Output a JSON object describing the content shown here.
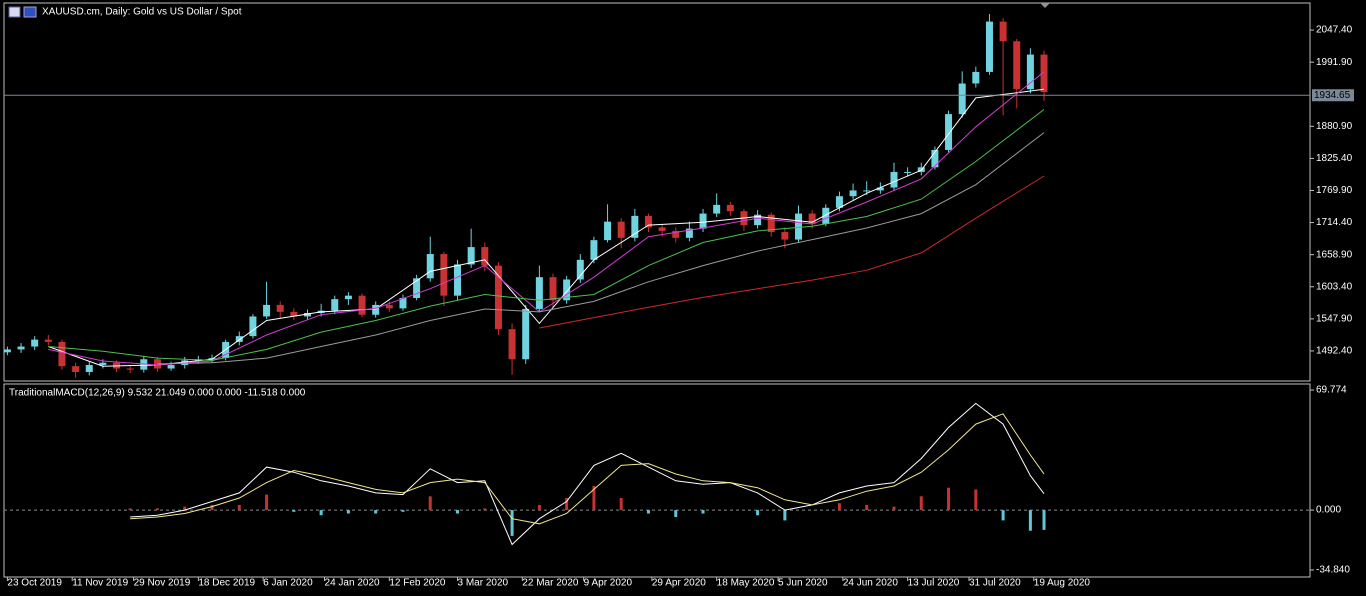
{
  "chart_data": [
    {
      "type": "candlestick",
      "title": "XAUUSD.cm, Daily:  Gold vs US Dollar / Spot",
      "x": [
        "2019-10-23",
        "2019-10-27",
        "2019-10-31",
        "2019-11-04",
        "2019-11-08",
        "2019-11-12",
        "2019-11-16",
        "2019-11-20",
        "2019-11-24",
        "2019-11-28",
        "2019-12-02",
        "2019-12-06",
        "2019-12-10",
        "2019-12-14",
        "2019-12-18",
        "2019-12-22",
        "2019-12-26",
        "2019-12-30",
        "2020-01-03",
        "2020-01-07",
        "2020-01-11",
        "2020-01-15",
        "2020-01-19",
        "2020-01-23",
        "2020-01-27",
        "2020-01-31",
        "2020-02-04",
        "2020-02-08",
        "2020-02-12",
        "2020-02-16",
        "2020-02-20",
        "2020-02-24",
        "2020-02-28",
        "2020-03-03",
        "2020-03-07",
        "2020-03-11",
        "2020-03-15",
        "2020-03-19",
        "2020-03-23",
        "2020-03-27",
        "2020-03-31",
        "2020-04-04",
        "2020-04-08",
        "2020-04-12",
        "2020-04-16",
        "2020-04-20",
        "2020-04-24",
        "2020-04-28",
        "2020-05-02",
        "2020-05-06",
        "2020-05-10",
        "2020-05-14",
        "2020-05-18",
        "2020-05-22",
        "2020-05-26",
        "2020-05-30",
        "2020-06-03",
        "2020-06-07",
        "2020-06-11",
        "2020-06-15",
        "2020-06-19",
        "2020-06-23",
        "2020-06-27",
        "2020-07-01",
        "2020-07-05",
        "2020-07-09",
        "2020-07-13",
        "2020-07-17",
        "2020-07-21",
        "2020-07-25",
        "2020-07-29",
        "2020-08-02",
        "2020-08-06",
        "2020-08-10",
        "2020-08-14",
        "2020-08-18",
        "2020-08-22"
      ],
      "open": [
        1490,
        1495,
        1500,
        1512,
        1508,
        1466,
        1456,
        1468,
        1472,
        1462,
        1460,
        1478,
        1462,
        1468,
        1476,
        1478,
        1480,
        1508,
        1518,
        1552,
        1572,
        1560,
        1552,
        1558,
        1562,
        1582,
        1588,
        1555,
        1572,
        1566,
        1584,
        1618,
        1660,
        1588,
        1642,
        1672,
        1640,
        1530,
        1478,
        1565,
        1620,
        1580,
        1616,
        1650,
        1684,
        1716,
        1688,
        1726,
        1706,
        1700,
        1688,
        1704,
        1730,
        1745,
        1734,
        1710,
        1728,
        1698,
        1685,
        1730,
        1712,
        1740,
        1760,
        1770,
        1770,
        1775,
        1802,
        1802,
        1810,
        1840,
        1902,
        1955,
        1975,
        2062,
        2028,
        1945,
        2005
      ],
      "high": [
        1500,
        1506,
        1518,
        1520,
        1512,
        1472,
        1474,
        1478,
        1476,
        1468,
        1484,
        1482,
        1474,
        1482,
        1484,
        1486,
        1512,
        1526,
        1556,
        1612,
        1578,
        1566,
        1564,
        1574,
        1588,
        1594,
        1592,
        1578,
        1578,
        1590,
        1624,
        1690,
        1664,
        1650,
        1704,
        1680,
        1646,
        1540,
        1572,
        1640,
        1626,
        1622,
        1660,
        1690,
        1746,
        1722,
        1738,
        1730,
        1712,
        1706,
        1716,
        1738,
        1765,
        1750,
        1738,
        1736,
        1732,
        1706,
        1744,
        1736,
        1746,
        1768,
        1782,
        1786,
        1784,
        1818,
        1810,
        1818,
        1846,
        1908,
        1976,
        1984,
        2075,
        2068,
        2032,
        2016,
        2012
      ],
      "low": [
        1485,
        1489,
        1494,
        1502,
        1460,
        1446,
        1450,
        1462,
        1456,
        1454,
        1455,
        1456,
        1458,
        1462,
        1470,
        1472,
        1476,
        1502,
        1514,
        1548,
        1548,
        1546,
        1546,
        1552,
        1556,
        1572,
        1550,
        1550,
        1560,
        1562,
        1580,
        1612,
        1570,
        1580,
        1636,
        1630,
        1520,
        1451,
        1470,
        1560,
        1568,
        1574,
        1610,
        1644,
        1680,
        1670,
        1682,
        1698,
        1690,
        1680,
        1682,
        1698,
        1724,
        1726,
        1700,
        1704,
        1690,
        1670,
        1680,
        1704,
        1708,
        1734,
        1754,
        1762,
        1764,
        1770,
        1794,
        1796,
        1806,
        1836,
        1896,
        1948,
        1970,
        1900,
        1912,
        1938,
        1925
      ],
      "close": [
        1495,
        1500,
        1512,
        1508,
        1466,
        1456,
        1468,
        1472,
        1462,
        1460,
        1478,
        1462,
        1468,
        1476,
        1478,
        1480,
        1508,
        1518,
        1552,
        1572,
        1560,
        1552,
        1558,
        1562,
        1582,
        1588,
        1555,
        1572,
        1566,
        1584,
        1618,
        1660,
        1588,
        1642,
        1672,
        1640,
        1530,
        1478,
        1565,
        1620,
        1580,
        1616,
        1650,
        1684,
        1716,
        1688,
        1726,
        1706,
        1700,
        1688,
        1704,
        1730,
        1745,
        1734,
        1710,
        1728,
        1698,
        1685,
        1730,
        1712,
        1740,
        1760,
        1770,
        1770,
        1775,
        1802,
        1802,
        1810,
        1840,
        1902,
        1955,
        1975,
        2062,
        2028,
        1945,
        2005,
        1940
      ],
      "up_color": "#6fd3e0",
      "down_color": "#c83232",
      "overlays": {
        "x": [
          "2019-11-04",
          "2019-11-20",
          "2019-12-06",
          "2019-12-22",
          "2020-01-07",
          "2020-01-23",
          "2020-02-08",
          "2020-02-24",
          "2020-03-11",
          "2020-03-27",
          "2020-04-12",
          "2020-04-28",
          "2020-05-14",
          "2020-05-30",
          "2020-06-15",
          "2020-07-01",
          "2020-07-17",
          "2020-08-02",
          "2020-08-22"
        ],
        "series": [
          {
            "color": "#ffffff",
            "values": [
              1500,
              1466,
              1468,
              1478,
              1545,
              1560,
              1565,
              1630,
              1650,
              1540,
              1650,
              1710,
              1715,
              1725,
              1715,
              1765,
              1805,
              1930,
              1945
            ]
          },
          {
            "color": "#d23cd2",
            "values": [
              1495,
              1475,
              1468,
              1475,
              1520,
              1555,
              1566,
              1600,
              1640,
              1560,
              1620,
              1690,
              1705,
              1722,
              1712,
              1750,
              1790,
              1880,
              1975
            ]
          },
          {
            "color": "#4cc04c",
            "values": [
              1500,
              1492,
              1480,
              1476,
              1495,
              1525,
              1545,
              1570,
              1590,
              1580,
              1590,
              1640,
              1680,
              1700,
              1708,
              1725,
              1755,
              1820,
              1910
            ]
          },
          {
            "color": "#9a9a9a",
            "values": [
              null,
              null,
              1470,
              1472,
              1480,
              1500,
              1520,
              1545,
              1565,
              1560,
              1578,
              1612,
              1640,
              1665,
              1685,
              1705,
              1730,
              1780,
              1870
            ]
          },
          {
            "color": "#d02828",
            "values": [
              null,
              null,
              null,
              null,
              null,
              null,
              null,
              null,
              null,
              1532,
              1550,
              1568,
              1585,
              1600,
              1615,
              1632,
              1662,
              1722,
              1795
            ]
          }
        ]
      },
      "current_price": 1934.65,
      "current_price_color": "#7a8898",
      "xlim": [
        "2019-10-22",
        "2020-11-08"
      ],
      "ylim": [
        1440.4,
        2094.2
      ],
      "yticks": [
        {
          "value": 2047.4,
          "label": "2047.40"
        },
        {
          "value": 1991.9,
          "label": "1991.90"
        },
        {
          "value": 1880.9,
          "label": "1880.90"
        },
        {
          "value": 1825.4,
          "label": "1825.40"
        },
        {
          "value": 1769.9,
          "label": "1769.90"
        },
        {
          "value": 1714.4,
          "label": "1714.40"
        },
        {
          "value": 1658.9,
          "label": "1658.90"
        },
        {
          "value": 1603.4,
          "label": "1603.40"
        },
        {
          "value": 1547.9,
          "label": "1547.90"
        },
        {
          "value": 1492.4,
          "label": "1492.40"
        }
      ],
      "grid": false
    },
    {
      "type": "macd",
      "title": "TraditionalMACD(12,26,9) 9.532 21.049 0.000 0.000 -11.518 0.000",
      "x": [
        "2019-11-28",
        "2019-12-06",
        "2019-12-14",
        "2019-12-22",
        "2019-12-30",
        "2020-01-07",
        "2020-01-15",
        "2020-01-23",
        "2020-01-31",
        "2020-02-08",
        "2020-02-16",
        "2020-02-24",
        "2020-03-03",
        "2020-03-11",
        "2020-03-19",
        "2020-03-27",
        "2020-04-04",
        "2020-04-12",
        "2020-04-20",
        "2020-04-28",
        "2020-05-06",
        "2020-05-14",
        "2020-05-22",
        "2020-05-30",
        "2020-06-07",
        "2020-06-15",
        "2020-06-23",
        "2020-07-01",
        "2020-07-09",
        "2020-07-17",
        "2020-07-25",
        "2020-08-02",
        "2020-08-10",
        "2020-08-18",
        "2020-08-22"
      ],
      "series": [
        {
          "color": "#ffffff",
          "values": [
            -4,
            -3,
            0,
            5,
            10,
            25,
            22,
            17,
            14,
            10,
            9,
            24,
            16,
            17,
            -20,
            -5,
            5,
            26,
            33,
            25,
            17,
            15,
            16,
            10,
            0,
            3,
            10,
            14,
            16,
            30,
            48,
            62,
            50,
            20,
            9.532
          ]
        },
        {
          "color": "#f0e68c",
          "values": [
            -5,
            -4,
            -2,
            2,
            7,
            16,
            23,
            20,
            16,
            12,
            10,
            16,
            18,
            16,
            -5,
            -8,
            -2,
            12,
            26,
            27,
            21,
            17,
            16,
            13,
            6,
            3,
            6,
            11,
            14,
            22,
            35,
            50,
            56,
            32,
            21.049
          ]
        }
      ],
      "histogram": {
        "up_color": "#c83232",
        "down_color": "#5fc8d8",
        "values": [
          1,
          1,
          2,
          3,
          3,
          9,
          -1,
          -3,
          -2,
          -2,
          -1,
          8,
          -2,
          1,
          -15,
          3,
          7,
          14,
          7,
          -2,
          -4,
          -2,
          0,
          -3,
          -6,
          0,
          4,
          3,
          2,
          8,
          13,
          12,
          -6,
          -12,
          -11.518
        ]
      },
      "xlim": [
        "2019-10-22",
        "2020-11-08"
      ],
      "ylim": [
        -38.9,
        73.3
      ],
      "yticks": [
        {
          "value": 69.774,
          "label": "69.774"
        },
        {
          "value": 0,
          "label": "0.000"
        },
        {
          "value": -34.84,
          "label": "-34.840"
        }
      ],
      "xticks": [
        {
          "value": "2019-10-23",
          "label": "23 Oct 2019"
        },
        {
          "value": "2019-11-11",
          "label": "11 Nov 2019"
        },
        {
          "value": "2019-11-29",
          "label": "29 Nov 2019"
        },
        {
          "value": "2019-12-18",
          "label": "18 Dec 2019"
        },
        {
          "value": "2020-01-06",
          "label": "6 Jan 2020"
        },
        {
          "value": "2020-01-24",
          "label": "24 Jan 2020"
        },
        {
          "value": "2020-02-12",
          "label": "12 Feb 2020"
        },
        {
          "value": "2020-03-03",
          "label": "3 Mar 2020"
        },
        {
          "value": "2020-03-22",
          "label": "22 Mar 2020"
        },
        {
          "value": "2020-04-09",
          "label": "9 Apr 2020"
        },
        {
          "value": "2020-04-29",
          "label": "29 Apr 2020"
        },
        {
          "value": "2020-05-18",
          "label": "18 May 2020"
        },
        {
          "value": "2020-06-05",
          "label": "5 Jun 2020"
        },
        {
          "value": "2020-06-24",
          "label": "24 Jun 2020"
        },
        {
          "value": "2020-07-13",
          "label": "13 Jul 2020"
        },
        {
          "value": "2020-07-31",
          "label": "31 Jul 2020"
        },
        {
          "value": "2020-08-19",
          "label": "19 Aug 2020"
        }
      ],
      "grid": false
    }
  ]
}
